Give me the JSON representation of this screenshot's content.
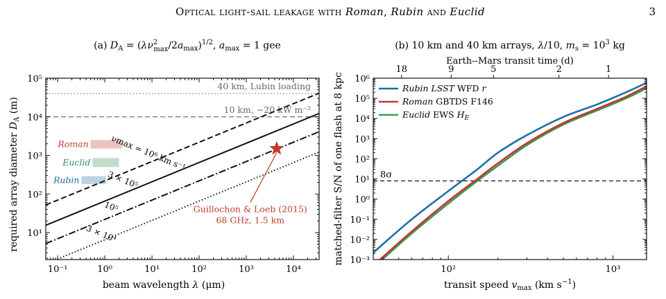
{
  "header": {
    "title_parts": [
      "Optical light-sail leakage with ",
      "Roman",
      ", ",
      "Rubin",
      " and ",
      "Euclid"
    ],
    "page_number": "3"
  },
  "chart_data": [
    {
      "type": "line",
      "title": "(a) DA = (λν²max/2amax)^1/2, amax = 1 gee",
      "xlabel": "beam wavelength λ (μm)",
      "ylabel": "required array diameter DA (m)",
      "xscale": "log",
      "yscale": "log",
      "xlim": [
        0.056,
        35000
      ],
      "ylim": [
        2,
        100000
      ],
      "xticks": [
        0.1,
        1,
        10,
        100,
        1000,
        10000
      ],
      "xtick_labels": [
        "10⁻¹",
        "10⁰",
        "10¹",
        "10²",
        "10³",
        "10⁴"
      ],
      "yticks": [
        10,
        100,
        1000,
        10000,
        100000
      ],
      "ytick_labels": [
        "10¹",
        "10²",
        "10³",
        "10⁴",
        "10⁵"
      ],
      "grid": false,
      "series": [
        {
          "name": "νmax = 10⁶ km s⁻¹",
          "style": "dashed",
          "x": [
            0.056,
            35000
          ],
          "y": [
            52,
            41000
          ]
        },
        {
          "name": "3 × 10⁵",
          "style": "solid",
          "x": [
            0.056,
            35000
          ],
          "y": [
            15.5,
            12200
          ]
        },
        {
          "name": "10⁵",
          "style": "dashdot",
          "x": [
            0.056,
            35000
          ],
          "y": [
            5.2,
            4100
          ]
        },
        {
          "name": "3 × 10⁴",
          "style": "dotted",
          "x": [
            0.056,
            35000
          ],
          "y": [
            1.55,
            1220
          ]
        }
      ],
      "hlines": [
        {
          "y": 40000,
          "style": "dotted",
          "label": "40 km, Lubin loading"
        },
        {
          "y": 10000,
          "style": "dashed",
          "label": "10 km, ∼20 kW m⁻²"
        }
      ],
      "bands": [
        {
          "name": "Roman",
          "x": [
            0.5,
            2.3
          ],
          "y": [
            1500,
            2500
          ],
          "color": "#c0392b"
        },
        {
          "name": "Euclid",
          "x": [
            0.55,
            2.0
          ],
          "y": [
            500,
            850
          ],
          "color": "#2e8b57"
        },
        {
          "name": "Rubin",
          "x": [
            0.32,
            1.06
          ],
          "y": [
            180,
            290
          ],
          "color": "#1f6fa3"
        }
      ],
      "marker": {
        "x": 4400,
        "y": 1500,
        "label_lines": [
          "Guillochon & Loeb (2015)",
          "68 GHz, 1.5 km"
        ],
        "color": "#c0392b"
      }
    },
    {
      "type": "line",
      "title": "(b) 10 km and 40 km arrays, λ/10, ms = 10³ kg",
      "xlabel": "transit speed νmax (km s⁻¹)",
      "ylabel": "matched-filter S/N of one flash at 8 kpc",
      "top_xlabel": "Earth--Mars transit time (d)",
      "xscale": "log",
      "yscale": "log",
      "xlim": [
        35,
        1600
      ],
      "ylim": [
        0.001,
        1000000
      ],
      "xticks": [
        100,
        1000
      ],
      "xtick_labels": [
        "10²",
        "10³"
      ],
      "top_ticks": [
        52,
        104,
        188,
        470,
        940
      ],
      "top_tick_labels": [
        "18",
        "9",
        "5",
        "2",
        "1"
      ],
      "yticks": [
        0.001,
        0.01,
        0.1,
        1,
        10,
        100,
        1000,
        10000,
        100000,
        1000000
      ],
      "ytick_labels": [
        "10⁻³",
        "10⁻²",
        "10⁻¹",
        "10⁰",
        "10¹",
        "10²",
        "10³",
        "10⁴",
        "10⁵",
        "10⁶"
      ],
      "grid": false,
      "series": [
        {
          "name": "Rubin LSST WFD r",
          "color": "#1f6fa3",
          "x": [
            35,
            60,
            100,
            150,
            200,
            300,
            500,
            800,
            1200,
            1600
          ],
          "y": [
            0.0022,
            0.1,
            2.5,
            30,
            200,
            1500,
            12000,
            50000,
            200000,
            600000
          ]
        },
        {
          "name": "Roman GBTDS F146",
          "color": "#c0392b",
          "x": [
            35,
            60,
            100,
            150,
            200,
            300,
            500,
            800,
            1200,
            1600
          ],
          "y": [
            0.0005,
            0.025,
            0.8,
            10,
            60,
            600,
            6000,
            30000,
            120000,
            400000
          ]
        },
        {
          "name": "Euclid EWS HE",
          "color": "#3a9a55",
          "x": [
            35,
            60,
            100,
            150,
            200,
            300,
            500,
            800,
            1200,
            1600
          ],
          "y": [
            0.0004,
            0.02,
            0.6,
            8,
            45,
            480,
            5000,
            25000,
            100000,
            320000
          ]
        }
      ],
      "hlines": [
        {
          "y": 8,
          "style": "dashed",
          "label": "8σ"
        }
      ],
      "legend": "top-left"
    }
  ]
}
